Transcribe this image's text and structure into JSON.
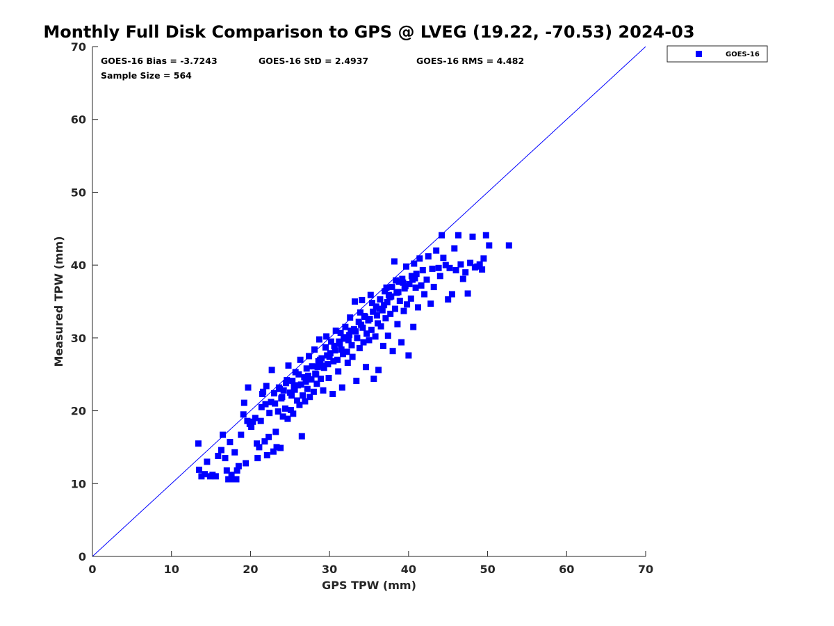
{
  "chart_data": {
    "type": "scatter",
    "title": "Monthly Full Disk Comparison to GPS @ LVEG (19.22, -70.53) 2024-03",
    "xlabel": "GPS TPW (mm)",
    "ylabel": "Measured TPW (mm)",
    "xlim": [
      0,
      70
    ],
    "ylim": [
      0,
      70
    ],
    "xticks": [
      0,
      10,
      20,
      30,
      40,
      50,
      60,
      70
    ],
    "yticks": [
      0,
      10,
      20,
      30,
      40,
      50,
      60,
      70
    ],
    "legend_position": "outside-top-right",
    "stats": {
      "bias": "GOES-16 Bias = -3.7243",
      "std": "GOES-16 StD = 2.4937",
      "rms": "GOES-16 RMS = 4.482",
      "sample_size": "Sample Size = 564"
    },
    "reference_line": {
      "name": "1:1 line",
      "x": [
        0,
        70
      ],
      "y": [
        0,
        70
      ],
      "color": "#0000ff"
    },
    "series": [
      {
        "name": "GOES-16",
        "color": "#0000ff",
        "marker": "square",
        "points": [
          [
            13.4,
            15.5
          ],
          [
            13.5,
            11.9
          ],
          [
            13.8,
            11.0
          ],
          [
            14.2,
            11.3
          ],
          [
            14.5,
            13.0
          ],
          [
            14.9,
            11.0
          ],
          [
            15.2,
            11.2
          ],
          [
            15.6,
            11.0
          ],
          [
            15.9,
            13.8
          ],
          [
            16.3,
            14.6
          ],
          [
            16.5,
            16.7
          ],
          [
            16.8,
            13.5
          ],
          [
            17.0,
            11.8
          ],
          [
            17.2,
            10.6
          ],
          [
            17.4,
            15.7
          ],
          [
            17.6,
            11.2
          ],
          [
            17.8,
            10.6
          ],
          [
            18.0,
            14.3
          ],
          [
            18.2,
            10.6
          ],
          [
            18.3,
            11.8
          ],
          [
            18.5,
            12.4
          ],
          [
            18.8,
            16.7
          ],
          [
            19.1,
            19.5
          ],
          [
            19.2,
            21.1
          ],
          [
            19.4,
            12.8
          ],
          [
            19.6,
            18.6
          ],
          [
            19.7,
            23.2
          ],
          [
            19.9,
            18.2
          ],
          [
            20.1,
            17.8
          ],
          [
            20.3,
            18.5
          ],
          [
            20.6,
            19.0
          ],
          [
            20.8,
            15.5
          ],
          [
            20.9,
            13.5
          ],
          [
            21.1,
            15.0
          ],
          [
            21.3,
            18.6
          ],
          [
            21.4,
            20.5
          ],
          [
            21.6,
            22.6
          ],
          [
            21.8,
            15.8
          ],
          [
            21.9,
            20.9
          ],
          [
            22.1,
            13.9
          ],
          [
            22.3,
            16.4
          ],
          [
            22.4,
            19.7
          ],
          [
            22.6,
            21.2
          ],
          [
            22.7,
            25.6
          ],
          [
            22.9,
            14.4
          ],
          [
            23.0,
            22.4
          ],
          [
            23.2,
            17.1
          ],
          [
            23.3,
            15.0
          ],
          [
            23.5,
            19.9
          ],
          [
            23.6,
            23.2
          ],
          [
            23.8,
            14.9
          ],
          [
            23.9,
            21.7
          ],
          [
            24.1,
            19.2
          ],
          [
            24.2,
            22.8
          ],
          [
            24.4,
            20.3
          ],
          [
            24.5,
            23.8
          ],
          [
            24.7,
            18.9
          ],
          [
            24.8,
            26.2
          ],
          [
            25.0,
            22.5
          ],
          [
            25.1,
            20.1
          ],
          [
            25.3,
            24.1
          ],
          [
            25.4,
            19.6
          ],
          [
            25.6,
            22.9
          ],
          [
            25.7,
            25.3
          ],
          [
            25.9,
            21.4
          ],
          [
            26.0,
            23.5
          ],
          [
            26.2,
            20.8
          ],
          [
            26.3,
            27.0
          ],
          [
            26.5,
            16.5
          ],
          [
            26.6,
            22.1
          ],
          [
            26.8,
            24.6
          ],
          [
            26.9,
            21.3
          ],
          [
            27.1,
            25.8
          ],
          [
            27.2,
            23.0
          ],
          [
            27.4,
            27.5
          ],
          [
            27.5,
            21.9
          ],
          [
            27.7,
            24.3
          ],
          [
            27.8,
            26.1
          ],
          [
            28.0,
            22.6
          ],
          [
            28.1,
            28.4
          ],
          [
            28.3,
            25.0
          ],
          [
            28.4,
            23.7
          ],
          [
            28.6,
            26.8
          ],
          [
            28.7,
            29.8
          ],
          [
            28.9,
            24.4
          ],
          [
            29.0,
            27.2
          ],
          [
            29.2,
            22.8
          ],
          [
            29.3,
            25.9
          ],
          [
            29.5,
            28.7
          ],
          [
            29.6,
            30.2
          ],
          [
            29.8,
            26.4
          ],
          [
            29.9,
            24.5
          ],
          [
            30.1,
            27.9
          ],
          [
            30.2,
            29.5
          ],
          [
            30.4,
            22.3
          ],
          [
            30.5,
            26.8
          ],
          [
            30.7,
            28.3
          ],
          [
            30.8,
            31.0
          ],
          [
            31.0,
            27.0
          ],
          [
            31.1,
            25.4
          ],
          [
            31.3,
            29.2
          ],
          [
            31.4,
            30.7
          ],
          [
            31.6,
            23.2
          ],
          [
            31.7,
            27.8
          ],
          [
            31.9,
            29.9
          ],
          [
            32.0,
            31.5
          ],
          [
            32.2,
            28.1
          ],
          [
            32.3,
            26.6
          ],
          [
            32.5,
            30.4
          ],
          [
            32.6,
            32.8
          ],
          [
            32.8,
            29.0
          ],
          [
            32.9,
            27.4
          ],
          [
            33.1,
            31.2
          ],
          [
            33.2,
            35.0
          ],
          [
            33.4,
            24.1
          ],
          [
            33.5,
            30.0
          ],
          [
            33.7,
            32.2
          ],
          [
            33.8,
            28.6
          ],
          [
            34.0,
            31.8
          ],
          [
            34.1,
            35.2
          ],
          [
            34.3,
            29.4
          ],
          [
            34.4,
            33.0
          ],
          [
            34.6,
            26.0
          ],
          [
            34.7,
            30.6
          ],
          [
            34.9,
            32.4
          ],
          [
            35.0,
            29.7
          ],
          [
            35.2,
            35.9
          ],
          [
            35.3,
            31.1
          ],
          [
            35.5,
            33.6
          ],
          [
            35.6,
            24.4
          ],
          [
            35.8,
            30.2
          ],
          [
            35.9,
            34.3
          ],
          [
            36.1,
            32.0
          ],
          [
            36.2,
            25.6
          ],
          [
            36.4,
            35.3
          ],
          [
            36.5,
            31.6
          ],
          [
            36.7,
            33.8
          ],
          [
            36.8,
            28.9
          ],
          [
            37.0,
            36.4
          ],
          [
            37.1,
            32.7
          ],
          [
            37.3,
            34.9
          ],
          [
            37.4,
            30.3
          ],
          [
            37.6,
            35.6
          ],
          [
            37.7,
            33.3
          ],
          [
            37.9,
            37.0
          ],
          [
            38.0,
            28.2
          ],
          [
            38.2,
            40.5
          ],
          [
            38.3,
            34.0
          ],
          [
            38.5,
            36.2
          ],
          [
            38.6,
            31.9
          ],
          [
            38.8,
            37.7
          ],
          [
            38.9,
            35.1
          ],
          [
            39.1,
            29.4
          ],
          [
            39.2,
            38.1
          ],
          [
            39.4,
            33.7
          ],
          [
            39.5,
            36.8
          ],
          [
            39.7,
            39.8
          ],
          [
            39.8,
            34.6
          ],
          [
            40.0,
            27.6
          ],
          [
            40.1,
            37.4
          ],
          [
            40.3,
            35.4
          ],
          [
            40.4,
            38.5
          ],
          [
            40.6,
            31.5
          ],
          [
            40.7,
            40.2
          ],
          [
            40.9,
            36.9
          ],
          [
            41.0,
            38.8
          ],
          [
            41.2,
            34.2
          ],
          [
            41.4,
            40.9
          ],
          [
            41.6,
            37.2
          ],
          [
            41.8,
            39.3
          ],
          [
            42.0,
            36.0
          ],
          [
            42.3,
            38.0
          ],
          [
            42.5,
            41.2
          ],
          [
            42.8,
            34.7
          ],
          [
            43.0,
            39.5
          ],
          [
            43.2,
            37.0
          ],
          [
            43.5,
            42.0
          ],
          [
            43.8,
            39.6
          ],
          [
            44.0,
            38.5
          ],
          [
            44.2,
            44.1
          ],
          [
            44.4,
            41.0
          ],
          [
            44.7,
            40.0
          ],
          [
            45.0,
            35.3
          ],
          [
            45.2,
            39.6
          ],
          [
            45.5,
            36.0
          ],
          [
            45.8,
            42.3
          ],
          [
            46.0,
            39.3
          ],
          [
            46.3,
            44.1
          ],
          [
            46.6,
            40.1
          ],
          [
            46.9,
            38.1
          ],
          [
            47.2,
            39.0
          ],
          [
            47.5,
            36.1
          ],
          [
            47.8,
            40.3
          ],
          [
            48.1,
            43.9
          ],
          [
            48.4,
            39.7
          ],
          [
            48.7,
            39.8
          ],
          [
            49.0,
            40.1
          ],
          [
            49.3,
            39.4
          ],
          [
            49.5,
            40.9
          ],
          [
            49.8,
            44.1
          ],
          [
            50.2,
            42.7
          ],
          [
            52.7,
            42.7
          ],
          [
            21.5,
            22.3
          ],
          [
            22.0,
            23.4
          ],
          [
            23.7,
            23.0
          ],
          [
            24.6,
            24.2
          ],
          [
            25.2,
            22.1
          ],
          [
            26.4,
            23.6
          ],
          [
            27.3,
            24.8
          ],
          [
            28.2,
            25.1
          ],
          [
            29.1,
            26.2
          ],
          [
            30.0,
            27.4
          ],
          [
            30.6,
            28.9
          ],
          [
            31.5,
            28.4
          ],
          [
            32.4,
            29.7
          ],
          [
            33.3,
            30.9
          ],
          [
            34.2,
            31.4
          ],
          [
            35.1,
            32.6
          ],
          [
            36.0,
            33.1
          ],
          [
            36.9,
            34.5
          ],
          [
            37.8,
            35.7
          ],
          [
            38.7,
            36.3
          ],
          [
            39.6,
            37.1
          ],
          [
            40.5,
            38.0
          ],
          [
            23.1,
            21.0
          ],
          [
            24.0,
            21.9
          ],
          [
            25.5,
            23.3
          ],
          [
            27.0,
            24.0
          ],
          [
            28.5,
            26.0
          ],
          [
            29.7,
            27.6
          ],
          [
            31.2,
            29.5
          ],
          [
            32.7,
            31.0
          ],
          [
            34.5,
            32.9
          ],
          [
            36.3,
            34.0
          ],
          [
            37.5,
            35.9
          ],
          [
            39.3,
            37.6
          ],
          [
            40.8,
            38.2
          ],
          [
            26.1,
            25.0
          ],
          [
            28.8,
            27.0
          ],
          [
            31.8,
            30.1
          ],
          [
            33.9,
            33.5
          ],
          [
            35.4,
            34.8
          ],
          [
            37.2,
            36.9
          ],
          [
            38.4,
            37.9
          ]
        ]
      }
    ]
  }
}
